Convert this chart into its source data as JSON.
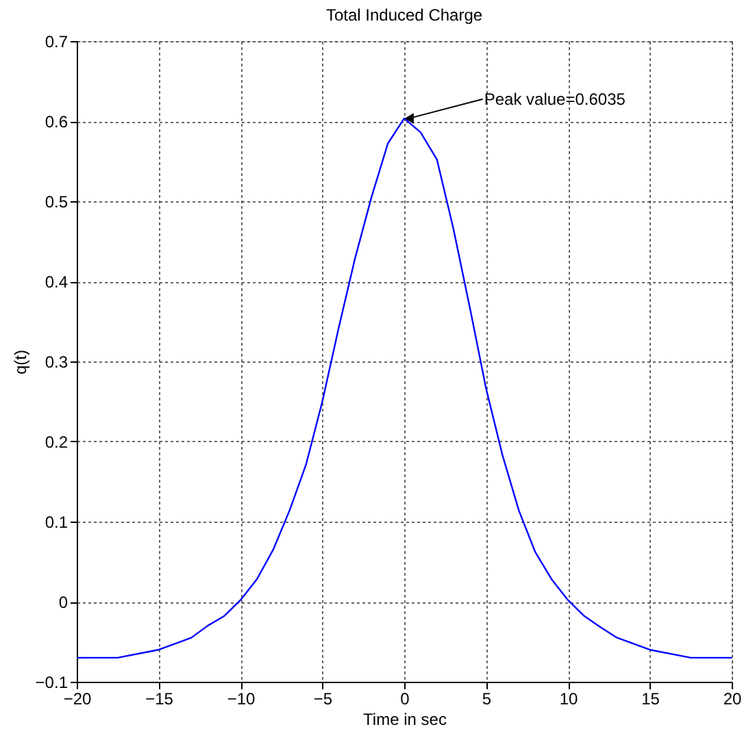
{
  "chart_data": {
    "type": "line",
    "title": "Total Induced Charge",
    "xlabel": "Time in sec",
    "ylabel": "q(t)",
    "x": [
      -20,
      -17.5,
      -15,
      -13,
      -12,
      -11,
      -10,
      -9,
      -8,
      -7,
      -6,
      -5,
      -4,
      -3,
      -2,
      -1,
      0,
      1,
      2,
      3,
      4,
      5,
      6,
      7,
      8,
      9,
      10,
      11,
      12,
      13,
      15,
      17.5,
      20
    ],
    "series": [
      {
        "color": "#0000ff",
        "values": [
          -0.07,
          -0.07,
          -0.06,
          -0.045,
          -0.03,
          -0.018,
          0.002,
          0.028,
          0.065,
          0.114,
          0.171,
          0.25,
          0.342,
          0.429,
          0.505,
          0.572,
          0.6035,
          0.586,
          0.552,
          0.466,
          0.368,
          0.266,
          0.183,
          0.114,
          0.062,
          0.028,
          0.002,
          -0.018,
          -0.032,
          -0.045,
          -0.06,
          -0.07,
          -0.07
        ]
      }
    ],
    "xlim": [
      -20,
      20
    ],
    "xticks": [
      -20,
      -15,
      -10,
      -5,
      0,
      5,
      10,
      15,
      20
    ],
    "ylim": [
      -0.1,
      0.7
    ],
    "yticks": [
      -0.1,
      0,
      0.1,
      0.2,
      0.3,
      0.4,
      0.5,
      0.6,
      0.7
    ],
    "grid": true,
    "marker": "none",
    "line_style": "solid",
    "annotations": [
      {
        "text": "Peak value=0.6035",
        "x": 0,
        "y": 0.6035
      }
    ]
  }
}
